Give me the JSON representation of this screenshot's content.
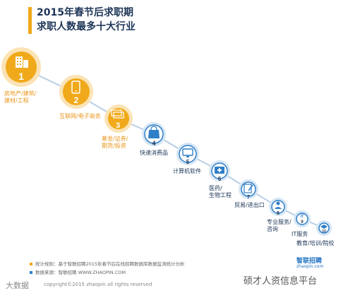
{
  "title": {
    "line1": "2015年春节后求职期",
    "line2": "求职人数最多十大行业"
  },
  "industries": [
    {
      "rank": "1",
      "label": "房地产/建筑/建材/工程",
      "line1": "房地产/建筑/",
      "line2": "建材/工程",
      "icon": "building-icon"
    },
    {
      "rank": "2",
      "label": "互联网/电子商务",
      "line1": "互联网/电子商务",
      "line2": "",
      "icon": "phone-icon"
    },
    {
      "rank": "3",
      "label": "基金/证券/期货/投资",
      "line1": "基金/证券/",
      "line2": "期货/投资",
      "icon": "money-icon"
    },
    {
      "rank": "4",
      "label": "快速消费品",
      "line1": "快速消费品",
      "line2": "",
      "icon": "shopping-bag-icon"
    },
    {
      "rank": "5",
      "label": "计算机软件",
      "line1": "计算机软件",
      "line2": "",
      "icon": "monitor-icon"
    },
    {
      "rank": "6",
      "label": "医药/生物工程",
      "line1": "医药/",
      "line2": "生物工程",
      "icon": "medical-kit-icon"
    },
    {
      "rank": "7",
      "label": "贸易/进出口",
      "line1": "贸易/进出口",
      "line2": "",
      "icon": "document-pen-icon"
    },
    {
      "rank": "8",
      "label": "专业服务/咨询",
      "line1": "专业服务/",
      "line2": "咨询",
      "icon": "person-icon"
    },
    {
      "rank": "9",
      "label": "IT服务",
      "line1": "IT服务",
      "line2": "",
      "icon": "it-icon",
      "icon_text": "IT"
    },
    {
      "rank": "10",
      "label": "教育/培训/院校",
      "line1": "教育/培训/院校",
      "line2": "",
      "icon": "graduation-cap-icon"
    }
  ],
  "footer": {
    "stat_rule": "统计规则：基于智联招聘2015年春节后在线招聘数据库数据监测统计分析",
    "data_source": "数据来源：智联招聘 WWW.ZHAOPIN.COM",
    "copyright": "copyright©2015 zhaopin all rights reserved",
    "brand": "智联招聘",
    "brand_sub": "zhaopin.com",
    "watermark_left": "大数据",
    "watermark_right": "硕才人资信息平台"
  },
  "colors": {
    "orange": "#f0a91a",
    "orange_dark": "#e9951a",
    "navy": "#1d3557",
    "blue": "#2f7fc8",
    "light_blue": "#cfe2f3"
  }
}
